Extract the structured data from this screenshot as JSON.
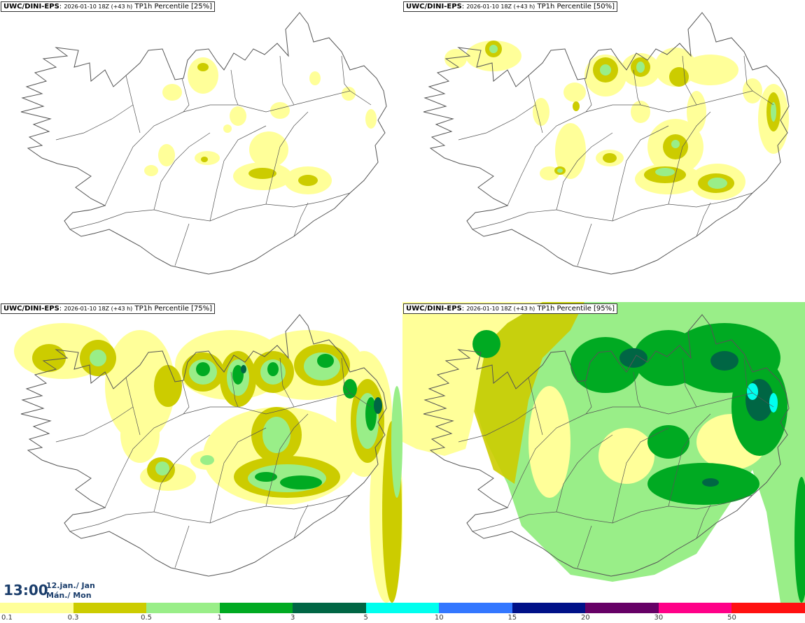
{
  "panels": [
    {
      "model": "UWC/DINI-EPS",
      "run": "2026-01-10 18Z (+43 h)",
      "field": "TP1h Percentile [25%]"
    },
    {
      "model": "UWC/DINI-EPS",
      "run": "2026-01-10 18Z (+43 h)",
      "field": "TP1h Percentile [50%]"
    },
    {
      "model": "UWC/DINI-EPS",
      "run": "2026-01-10 18Z (+43 h)",
      "field": "TP1h Percentile [75%]"
    },
    {
      "model": "UWC/DINI-EPS",
      "run": "2026-01-10 18Z (+43 h)",
      "field": "TP1h Percentile [95%]"
    }
  ],
  "valid_time": {
    "time": "13:00",
    "date_line1": "12.jan./ Jan",
    "date_line2": "Mán./ Mon"
  },
  "legend": {
    "colors": [
      "#ffff99",
      "#cccc00",
      "#99ee88",
      "#00aa22",
      "#006644",
      "#00ffee",
      "#3377ff",
      "#001188",
      "#660066",
      "#ff0088",
      "#ff1111"
    ],
    "labels": [
      "0.1",
      "0.3",
      "0.5",
      "1",
      "3",
      "5",
      "10",
      "15",
      "20",
      "30",
      "50"
    ]
  }
}
